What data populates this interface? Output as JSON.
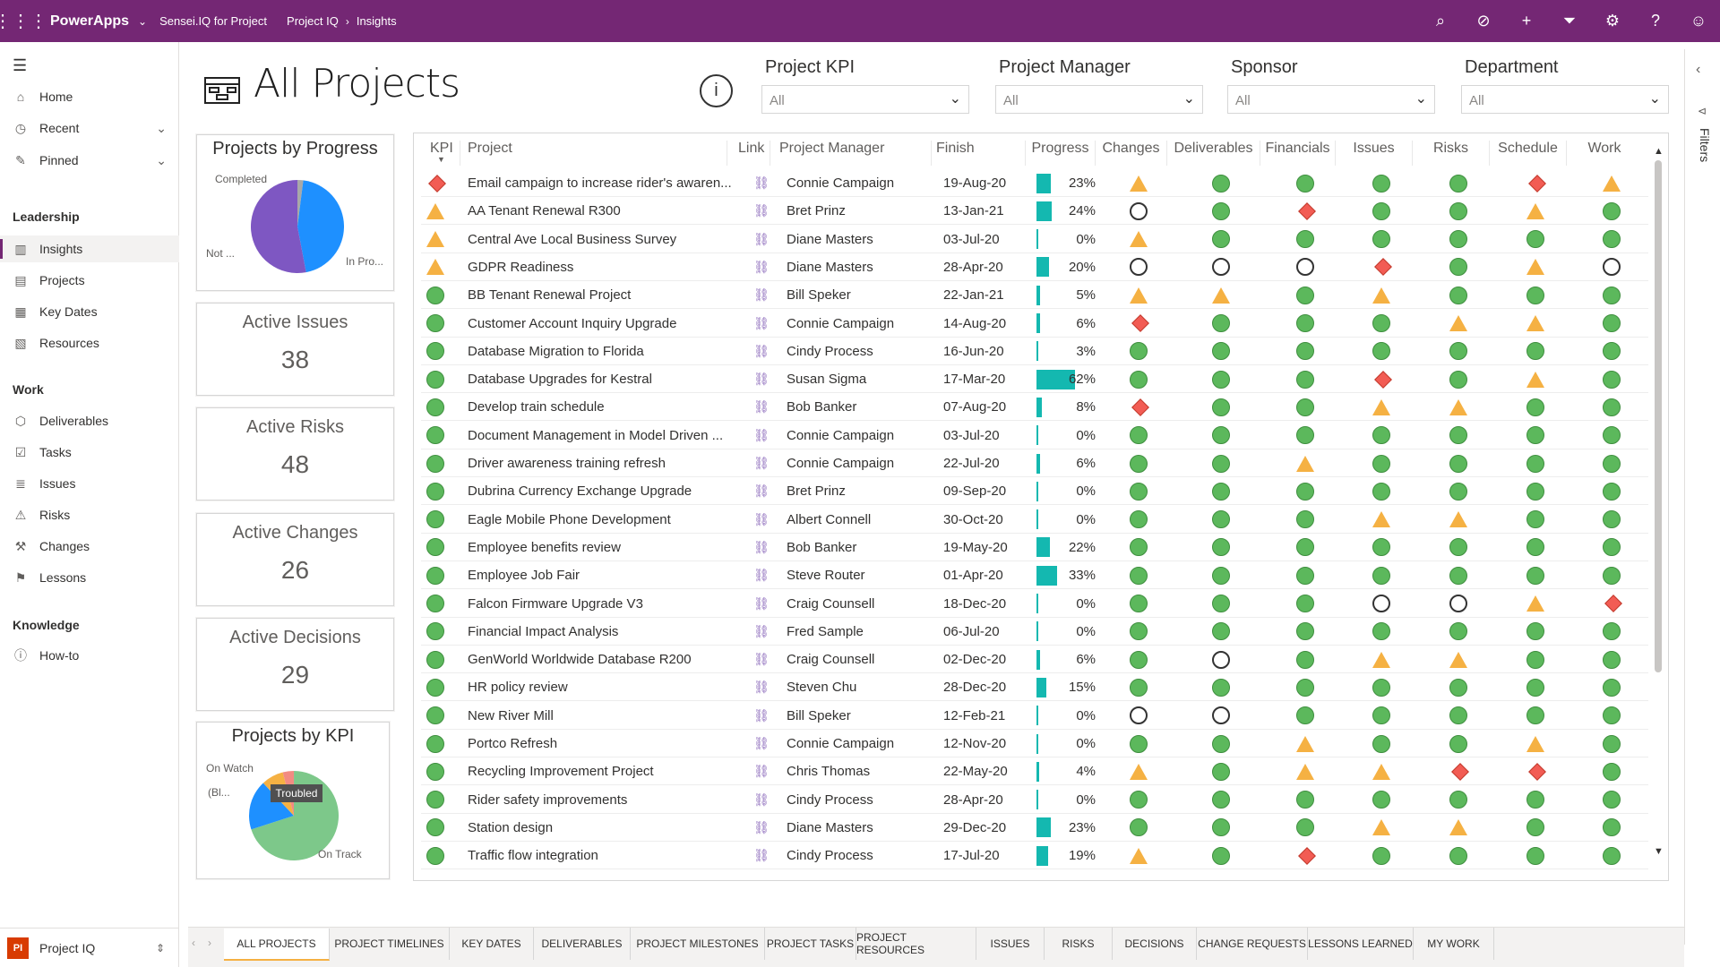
{
  "topbar": {
    "brand": "PowerApps",
    "crumb1": "Sensei.IQ for Project",
    "crumb2": "Project IQ",
    "crumb3": "Insights"
  },
  "nav": {
    "home": "Home",
    "recent": "Recent",
    "pinned": "Pinned",
    "leadership": "Leadership",
    "insights": "Insights",
    "projects": "Projects",
    "keydates": "Key Dates",
    "resources": "Resources",
    "work": "Work",
    "deliverables": "Deliverables",
    "tasks": "Tasks",
    "issues": "Issues",
    "risks": "Risks",
    "changes": "Changes",
    "lessons": "Lessons",
    "knowledge": "Knowledge",
    "howto": "How-to",
    "app_name": "Project IQ",
    "app_logo": "PI"
  },
  "page": {
    "title": "All Projects"
  },
  "filters": [
    {
      "label": "Project KPI",
      "value": "All"
    },
    {
      "label": "Project Manager",
      "value": "All"
    },
    {
      "label": "Sponsor",
      "value": "All"
    },
    {
      "label": "Department",
      "value": "All"
    }
  ],
  "cards": {
    "progress_title": "Projects by Progress",
    "progress_labels": {
      "completed": "Completed",
      "not": "Not ...",
      "inpro": "In Pro..."
    },
    "issues_title": "Active Issues",
    "issues_value": "38",
    "risks_title": "Active Risks",
    "risks_value": "48",
    "changes_title": "Active Changes",
    "changes_value": "26",
    "decisions_title": "Active Decisions",
    "decisions_value": "29",
    "kpi_title": "Projects by KPI",
    "kpi_labels": {
      "onwatch": "On Watch",
      "bl": "(Bl...",
      "ontrack": "On Track",
      "tooltip": "Troubled"
    }
  },
  "chart_data": [
    {
      "type": "pie",
      "title": "Projects by Progress",
      "slices": [
        {
          "label": "Completed",
          "value": 2
        },
        {
          "label": "Not ...",
          "value": 45
        },
        {
          "label": "In Pro...",
          "value": 53
        }
      ]
    },
    {
      "type": "pie",
      "title": "Projects by KPI",
      "slices": [
        {
          "label": "On Track",
          "value": 70
        },
        {
          "label": "(Bl...",
          "value": 18
        },
        {
          "label": "On Watch",
          "value": 8
        },
        {
          "label": "Troubled",
          "value": 4
        }
      ]
    }
  ],
  "grid": {
    "headers": {
      "kpi": "KPI",
      "project": "Project",
      "link": "Link",
      "manager": "Project Manager",
      "finish": "Finish",
      "progress": "Progress",
      "changes": "Changes",
      "deliverables": "Deliverables",
      "financials": "Financials",
      "issues": "Issues",
      "risks": "Risks",
      "schedule": "Schedule",
      "work": "Work"
    },
    "rows": [
      {
        "kpi": "r",
        "name": "Email campaign to increase rider's awaren...",
        "pm": "Connie Campaign",
        "finish": "19-Aug-20",
        "pct": "23%",
        "p": 23,
        "s": [
          "t",
          "g",
          "g",
          "g",
          "g",
          "r",
          "t"
        ]
      },
      {
        "kpi": "t",
        "name": "AA Tenant Renewal R300",
        "pm": "Bret Prinz",
        "finish": "13-Jan-21",
        "pct": "24%",
        "p": 24,
        "s": [
          "o",
          "g",
          "r",
          "g",
          "g",
          "t",
          "g"
        ]
      },
      {
        "kpi": "t",
        "name": "Central Ave Local Business Survey",
        "pm": "Diane Masters",
        "finish": "03-Jul-20",
        "pct": "0%",
        "p": 0,
        "s": [
          "t",
          "g",
          "g",
          "g",
          "g",
          "g",
          "g"
        ]
      },
      {
        "kpi": "t",
        "name": "GDPR Readiness",
        "pm": "Diane Masters",
        "finish": "28-Apr-20",
        "pct": "20%",
        "p": 20,
        "s": [
          "o",
          "o",
          "o",
          "r",
          "g",
          "t",
          "o"
        ]
      },
      {
        "kpi": "g",
        "name": "BB Tenant Renewal Project",
        "pm": "Bill Speker",
        "finish": "22-Jan-21",
        "pct": "5%",
        "p": 5,
        "s": [
          "t",
          "t",
          "g",
          "t",
          "g",
          "g",
          "g"
        ]
      },
      {
        "kpi": "g",
        "name": "Customer Account Inquiry Upgrade",
        "pm": "Connie Campaign",
        "finish": "14-Aug-20",
        "pct": "6%",
        "p": 6,
        "s": [
          "r",
          "g",
          "g",
          "g",
          "t",
          "t",
          "g"
        ]
      },
      {
        "kpi": "g",
        "name": "Database Migration to Florida",
        "pm": "Cindy Process",
        "finish": "16-Jun-20",
        "pct": "3%",
        "p": 3,
        "s": [
          "g",
          "g",
          "g",
          "g",
          "g",
          "g",
          "g"
        ]
      },
      {
        "kpi": "g",
        "name": "Database Upgrades for Kestral",
        "pm": "Susan Sigma",
        "finish": "17-Mar-20",
        "pct": "62%",
        "p": 62,
        "s": [
          "g",
          "g",
          "g",
          "r",
          "g",
          "t",
          "g"
        ]
      },
      {
        "kpi": "g",
        "name": "Develop train schedule",
        "pm": "Bob Banker",
        "finish": "07-Aug-20",
        "pct": "8%",
        "p": 8,
        "s": [
          "r",
          "g",
          "g",
          "t",
          "t",
          "g",
          "g"
        ]
      },
      {
        "kpi": "g",
        "name": "Document Management in Model Driven ...",
        "pm": "Connie Campaign",
        "finish": "03-Jul-20",
        "pct": "0%",
        "p": 0,
        "s": [
          "g",
          "g",
          "g",
          "g",
          "g",
          "g",
          "g"
        ]
      },
      {
        "kpi": "g",
        "name": "Driver awareness training refresh",
        "pm": "Connie Campaign",
        "finish": "22-Jul-20",
        "pct": "6%",
        "p": 6,
        "s": [
          "g",
          "g",
          "t",
          "g",
          "g",
          "g",
          "g"
        ]
      },
      {
        "kpi": "g",
        "name": "Dubrina Currency Exchange Upgrade",
        "pm": "Bret Prinz",
        "finish": "09-Sep-20",
        "pct": "0%",
        "p": 0,
        "s": [
          "g",
          "g",
          "g",
          "g",
          "g",
          "g",
          "g"
        ]
      },
      {
        "kpi": "g",
        "name": "Eagle Mobile Phone Development",
        "pm": "Albert Connell",
        "finish": "30-Oct-20",
        "pct": "0%",
        "p": 0,
        "s": [
          "g",
          "g",
          "g",
          "t",
          "t",
          "g",
          "g"
        ]
      },
      {
        "kpi": "g",
        "name": "Employee benefits review",
        "pm": "Bob Banker",
        "finish": "19-May-20",
        "pct": "22%",
        "p": 22,
        "s": [
          "g",
          "g",
          "g",
          "g",
          "g",
          "g",
          "g"
        ]
      },
      {
        "kpi": "g",
        "name": "Employee Job Fair",
        "pm": "Steve Router",
        "finish": "01-Apr-20",
        "pct": "33%",
        "p": 33,
        "s": [
          "g",
          "g",
          "g",
          "g",
          "g",
          "g",
          "g"
        ]
      },
      {
        "kpi": "g",
        "name": "Falcon Firmware Upgrade V3",
        "pm": "Craig Counsell",
        "finish": "18-Dec-20",
        "pct": "0%",
        "p": 0,
        "s": [
          "g",
          "g",
          "g",
          "o",
          "o",
          "t",
          "r"
        ]
      },
      {
        "kpi": "g",
        "name": "Financial Impact Analysis",
        "pm": "Fred Sample",
        "finish": "06-Jul-20",
        "pct": "0%",
        "p": 0,
        "s": [
          "g",
          "g",
          "g",
          "g",
          "g",
          "g",
          "g"
        ]
      },
      {
        "kpi": "g",
        "name": "GenWorld Worldwide Database R200",
        "pm": "Craig Counsell",
        "finish": "02-Dec-20",
        "pct": "6%",
        "p": 6,
        "s": [
          "g",
          "o",
          "g",
          "t",
          "t",
          "g",
          "g"
        ]
      },
      {
        "kpi": "g",
        "name": "HR policy review",
        "pm": "Steven Chu",
        "finish": "28-Dec-20",
        "pct": "15%",
        "p": 15,
        "s": [
          "g",
          "g",
          "g",
          "g",
          "g",
          "g",
          "g"
        ]
      },
      {
        "kpi": "g",
        "name": "New River Mill",
        "pm": "Bill Speker",
        "finish": "12-Feb-21",
        "pct": "0%",
        "p": 0,
        "s": [
          "o",
          "o",
          "g",
          "g",
          "g",
          "g",
          "g"
        ]
      },
      {
        "kpi": "g",
        "name": "Portco Refresh",
        "pm": "Connie Campaign",
        "finish": "12-Nov-20",
        "pct": "0%",
        "p": 0,
        "s": [
          "g",
          "g",
          "t",
          "g",
          "g",
          "t",
          "g"
        ]
      },
      {
        "kpi": "g",
        "name": "Recycling Improvement Project",
        "pm": "Chris Thomas",
        "finish": "22-May-20",
        "pct": "4%",
        "p": 4,
        "s": [
          "t",
          "g",
          "t",
          "t",
          "r",
          "r",
          "g"
        ]
      },
      {
        "kpi": "g",
        "name": "Rider safety improvements",
        "pm": "Cindy Process",
        "finish": "28-Apr-20",
        "pct": "0%",
        "p": 0,
        "s": [
          "g",
          "g",
          "g",
          "g",
          "g",
          "g",
          "g"
        ]
      },
      {
        "kpi": "g",
        "name": "Station design",
        "pm": "Diane Masters",
        "finish": "29-Dec-20",
        "pct": "23%",
        "p": 23,
        "s": [
          "g",
          "g",
          "g",
          "t",
          "t",
          "g",
          "g"
        ]
      },
      {
        "kpi": "g",
        "name": "Traffic flow integration",
        "pm": "Cindy Process",
        "finish": "17-Jul-20",
        "pct": "19%",
        "p": 19,
        "s": [
          "t",
          "g",
          "r",
          "g",
          "g",
          "g",
          "g"
        ]
      }
    ]
  },
  "tabs": [
    "ALL PROJECTS",
    "PROJECT TIMELINES",
    "KEY DATES",
    "DELIVERABLES",
    "PROJECT MILESTONES",
    "PROJECT TASKS",
    "PROJECT RESOURCES",
    "ISSUES",
    "RISKS",
    "DECISIONS",
    "CHANGE REQUESTS",
    "LESSONS LEARNED",
    "MY WORK"
  ],
  "filters_pane": "Filters"
}
